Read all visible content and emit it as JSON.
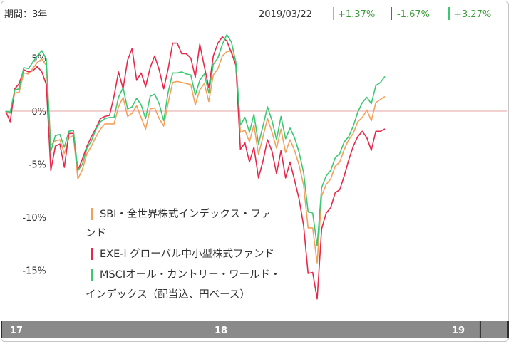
{
  "header": {
    "period_label": "期間：3年",
    "date": "2019/03/22",
    "changes": [
      "+1.37%",
      "-1.67%",
      "+3.27%"
    ]
  },
  "legend": {
    "items": [
      {
        "lines": [
          "SBI・全世界株式インデックス・ファ",
          "ンド"
        ]
      },
      {
        "lines": [
          "EXE-i グローバル中小型株式ファンド"
        ]
      },
      {
        "lines": [
          "MSCIオール・カントリー・ワールド・",
          "インデックス（配当込、円ベース）"
        ]
      }
    ]
  },
  "colors": {
    "sbi": "#f5a05a",
    "exei": "#e8284a",
    "msci": "#3cc873",
    "change_text": "#3a9a3a",
    "zero_line": "#e6a3a3",
    "axis_bar": "#8a8a8a"
  },
  "chart_data": {
    "type": "line",
    "title": "",
    "xlabel": "",
    "ylabel": "",
    "ylim": [
      -19,
      8.5
    ],
    "yticks": [
      5,
      0,
      -5,
      -10,
      -15
    ],
    "ytick_labels": [
      "5%",
      "0%",
      "-5%",
      "-10%",
      "-15%"
    ],
    "x_axis_labels": [
      "17",
      "18",
      "19"
    ],
    "x_label_positions": [
      0,
      50,
      100.5
    ],
    "x_separators": [
      0,
      94.5,
      100
    ],
    "x_range": [
      0,
      111
    ],
    "grid": false,
    "zero_line": true,
    "legend_position": "bottom-left",
    "series": [
      {
        "key": "sbi",
        "values": [
          [
            0,
            0
          ],
          [
            1,
            -0.2
          ],
          [
            2,
            1.7
          ],
          [
            3,
            1.8
          ],
          [
            4,
            3.6
          ],
          [
            5,
            3.5
          ],
          [
            6,
            4.0
          ],
          [
            7,
            4.6
          ],
          [
            8,
            4.9
          ],
          [
            9,
            4.3
          ],
          [
            10,
            -3.2
          ],
          [
            11,
            -2.8
          ],
          [
            12,
            -2.7
          ],
          [
            13,
            -4.0
          ],
          [
            14,
            -2.5
          ],
          [
            15,
            -2.3
          ],
          [
            16,
            -6.4
          ],
          [
            17,
            -5.5
          ],
          [
            18,
            -4.0
          ],
          [
            19,
            -3.3
          ],
          [
            20,
            -2.4
          ],
          [
            21,
            -1.7
          ],
          [
            22,
            -1.2
          ],
          [
            23,
            -1.2
          ],
          [
            24,
            -1.2
          ],
          [
            25,
            0.4
          ],
          [
            26,
            1.3
          ],
          [
            27,
            -0.5
          ],
          [
            28,
            -0.2
          ],
          [
            29,
            0.5
          ],
          [
            30,
            -0.6
          ],
          [
            31,
            -1.7
          ],
          [
            32,
            0.2
          ],
          [
            33,
            0.3
          ],
          [
            34,
            -0.7
          ],
          [
            35,
            -1.4
          ],
          [
            36,
            0.8
          ],
          [
            37,
            2.7
          ],
          [
            38,
            2.8
          ],
          [
            39,
            2.7
          ],
          [
            40,
            2.6
          ],
          [
            41,
            2.5
          ],
          [
            42,
            0.6
          ],
          [
            43,
            2.0
          ],
          [
            44,
            2.6
          ],
          [
            45,
            0.9
          ],
          [
            46,
            3.4
          ],
          [
            47,
            4.0
          ],
          [
            48,
            5.2
          ],
          [
            49,
            5.6
          ],
          [
            50,
            5.7
          ],
          [
            51,
            4.3
          ],
          [
            52,
            -2.0
          ],
          [
            53,
            -1.8
          ],
          [
            54,
            -2.9
          ],
          [
            55,
            -1.3
          ],
          [
            56,
            -4.1
          ],
          [
            57,
            -2.4
          ],
          [
            58,
            -0.7
          ],
          [
            59,
            -2.0
          ],
          [
            60,
            -3.5
          ],
          [
            61,
            -1.7
          ],
          [
            62,
            -3.9
          ],
          [
            63,
            -2.7
          ],
          [
            64,
            -3.7
          ],
          [
            65,
            -5.1
          ],
          [
            66,
            -7.0
          ],
          [
            67,
            -11.0
          ],
          [
            68,
            -11.0
          ],
          [
            69,
            -14.3
          ],
          [
            70,
            -8.0
          ],
          [
            71,
            -6.9
          ],
          [
            72,
            -6.4
          ],
          [
            73,
            -5.2
          ],
          [
            74,
            -4.8
          ],
          [
            75,
            -3.6
          ],
          [
            76,
            -2.7
          ],
          [
            77,
            -2.1
          ],
          [
            78,
            -1.0
          ],
          [
            79,
            -0.6
          ],
          [
            80,
            0.1
          ],
          [
            81,
            -0.9
          ],
          [
            82,
            0.8
          ],
          [
            83,
            1.1
          ],
          [
            84,
            1.37
          ]
        ]
      },
      {
        "key": "exei",
        "values": [
          [
            0,
            0
          ],
          [
            1,
            -1.0
          ],
          [
            2,
            2.1
          ],
          [
            3,
            2.6
          ],
          [
            4,
            3.9
          ],
          [
            5,
            3.7
          ],
          [
            6,
            3.8
          ],
          [
            7,
            4.2
          ],
          [
            8,
            3.7
          ],
          [
            9,
            2.5
          ],
          [
            10,
            -5.6
          ],
          [
            11,
            -3.3
          ],
          [
            12,
            -3.1
          ],
          [
            13,
            -5.3
          ],
          [
            14,
            -2.1
          ],
          [
            15,
            -2.1
          ],
          [
            16,
            -5.6
          ],
          [
            17,
            -4.5
          ],
          [
            18,
            -3.3
          ],
          [
            19,
            -2.4
          ],
          [
            20,
            -1.6
          ],
          [
            21,
            -0.7
          ],
          [
            22,
            -0.5
          ],
          [
            23,
            -0.4
          ],
          [
            24,
            1.4
          ],
          [
            25,
            3.7
          ],
          [
            26,
            2.1
          ],
          [
            27,
            4.8
          ],
          [
            28,
            5.9
          ],
          [
            29,
            2.9
          ],
          [
            30,
            3.6
          ],
          [
            31,
            2.3
          ],
          [
            32,
            4.1
          ],
          [
            33,
            5.2
          ],
          [
            34,
            3.9
          ],
          [
            35,
            2.1
          ],
          [
            36,
            4.0
          ],
          [
            37,
            6.4
          ],
          [
            38,
            6.4
          ],
          [
            39,
            5.4
          ],
          [
            40,
            5.4
          ],
          [
            41,
            5.0
          ],
          [
            42,
            3.2
          ],
          [
            43,
            6.3
          ],
          [
            44,
            4.2
          ],
          [
            45,
            2.2
          ],
          [
            46,
            5.2
          ],
          [
            47,
            6.4
          ],
          [
            48,
            7.0
          ],
          [
            49,
            6.6
          ],
          [
            50,
            5.5
          ],
          [
            51,
            4.3
          ],
          [
            52,
            -3.6
          ],
          [
            53,
            -3.0
          ],
          [
            54,
            -4.8
          ],
          [
            55,
            -3.4
          ],
          [
            56,
            -6.3
          ],
          [
            57,
            -4.7
          ],
          [
            58,
            -2.7
          ],
          [
            59,
            -3.8
          ],
          [
            60,
            -5.9
          ],
          [
            61,
            -3.7
          ],
          [
            62,
            -6.3
          ],
          [
            63,
            -4.8
          ],
          [
            64,
            -6.5
          ],
          [
            65,
            -8.3
          ],
          [
            66,
            -10.8
          ],
          [
            67,
            -15.3
          ],
          [
            68,
            -15.2
          ],
          [
            69,
            -17.7
          ],
          [
            70,
            -11.1
          ],
          [
            71,
            -9.6
          ],
          [
            72,
            -9.1
          ],
          [
            73,
            -7.7
          ],
          [
            74,
            -7.4
          ],
          [
            75,
            -6.1
          ],
          [
            76,
            -4.6
          ],
          [
            77,
            -3.3
          ],
          [
            78,
            -2.4
          ],
          [
            79,
            -1.9
          ],
          [
            80,
            -2.5
          ],
          [
            81,
            -3.7
          ],
          [
            82,
            -1.9
          ],
          [
            83,
            -1.9
          ],
          [
            84,
            -1.67
          ]
        ]
      },
      {
        "key": "msci",
        "values": [
          [
            0,
            0
          ],
          [
            1,
            -0.1
          ],
          [
            2,
            2.0
          ],
          [
            3,
            2.1
          ],
          [
            4,
            4.1
          ],
          [
            5,
            4.0
          ],
          [
            6,
            4.6
          ],
          [
            7,
            5.2
          ],
          [
            8,
            5.7
          ],
          [
            9,
            4.9
          ],
          [
            10,
            -3.8
          ],
          [
            11,
            -2.3
          ],
          [
            12,
            -2.2
          ],
          [
            13,
            -3.4
          ],
          [
            14,
            -1.9
          ],
          [
            15,
            -1.8
          ],
          [
            16,
            -5.6
          ],
          [
            17,
            -5.0
          ],
          [
            18,
            -3.5
          ],
          [
            19,
            -2.8
          ],
          [
            20,
            -1.7
          ],
          [
            21,
            -1.0
          ],
          [
            22,
            -0.7
          ],
          [
            23,
            -0.6
          ],
          [
            24,
            -0.6
          ],
          [
            25,
            1.3
          ],
          [
            26,
            2.2
          ],
          [
            27,
            0.2
          ],
          [
            28,
            0.4
          ],
          [
            29,
            1.2
          ],
          [
            30,
            0.6
          ],
          [
            31,
            -0.7
          ],
          [
            32,
            1.4
          ],
          [
            33,
            1.6
          ],
          [
            34,
            0.7
          ],
          [
            35,
            -0.9
          ],
          [
            36,
            1.8
          ],
          [
            37,
            3.6
          ],
          [
            38,
            3.6
          ],
          [
            39,
            3.7
          ],
          [
            40,
            3.5
          ],
          [
            41,
            3.4
          ],
          [
            42,
            1.5
          ],
          [
            43,
            2.9
          ],
          [
            44,
            3.5
          ],
          [
            45,
            1.7
          ],
          [
            46,
            4.4
          ],
          [
            47,
            5.0
          ],
          [
            48,
            6.3
          ],
          [
            49,
            7.2
          ],
          [
            50,
            6.5
          ],
          [
            51,
            4.6
          ],
          [
            52,
            -1.3
          ],
          [
            53,
            -0.6
          ],
          [
            54,
            -2.0
          ],
          [
            55,
            -0.3
          ],
          [
            56,
            -3.1
          ],
          [
            57,
            -1.4
          ],
          [
            58,
            0.4
          ],
          [
            59,
            -0.9
          ],
          [
            60,
            -2.7
          ],
          [
            61,
            -0.5
          ],
          [
            62,
            -2.6
          ],
          [
            63,
            -1.6
          ],
          [
            64,
            -2.5
          ],
          [
            65,
            -3.9
          ],
          [
            66,
            -5.8
          ],
          [
            67,
            -9.5
          ],
          [
            68,
            -9.6
          ],
          [
            69,
            -12.7
          ],
          [
            70,
            -7.2
          ],
          [
            71,
            -6.1
          ],
          [
            72,
            -5.6
          ],
          [
            73,
            -4.4
          ],
          [
            74,
            -4.0
          ],
          [
            75,
            -2.9
          ],
          [
            76,
            -2.4
          ],
          [
            77,
            -1.4
          ],
          [
            78,
            -0.1
          ],
          [
            79,
            0.8
          ],
          [
            80,
            1.3
          ],
          [
            81,
            0.7
          ],
          [
            82,
            2.4
          ],
          [
            83,
            2.7
          ],
          [
            84,
            3.27
          ]
        ]
      }
    ]
  }
}
